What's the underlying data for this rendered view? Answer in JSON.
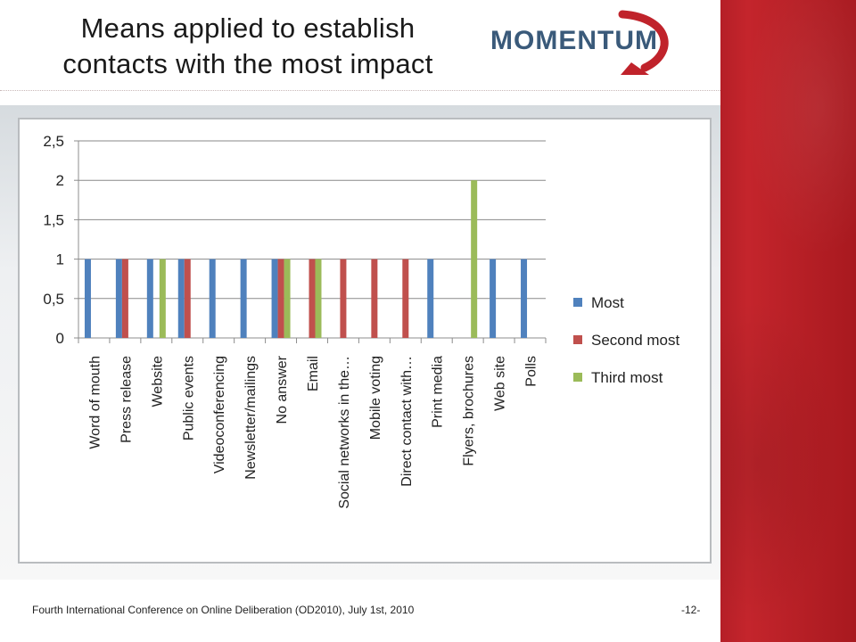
{
  "slide": {
    "title_line1": "Means applied to establish",
    "title_line2": "contacts with the most impact",
    "logo_text": "MOMENTUM",
    "footer": "Fourth International Conference on Online Deliberation (OD2010),  July 1st, 2010",
    "page_number": "-12-"
  },
  "colors": {
    "most": "#4f81bd",
    "second_most": "#c0504d",
    "third_most": "#9bbb59",
    "accent_red": "#b51f27"
  },
  "chart_data": {
    "type": "bar",
    "title": "",
    "xlabel": "",
    "ylabel": "",
    "ylim": [
      0,
      2.5
    ],
    "yticks": [
      "0",
      "0,5",
      "1",
      "1,5",
      "2",
      "2,5"
    ],
    "grid": true,
    "legend_position": "right",
    "categories": [
      "Word of mouth",
      "Press release",
      "Website",
      "Public events",
      "Videoconferencing",
      "Newsletter/mailings",
      "No answer",
      "Email",
      "Social networks in the…",
      "Mobile voting",
      "Direct contact with…",
      "Print media",
      "Flyers, brochures",
      "Web site",
      "Polls"
    ],
    "series": [
      {
        "name": "Most",
        "color": "#4f81bd",
        "values": [
          1,
          1,
          1,
          1,
          1,
          1,
          1,
          0,
          0,
          0,
          0,
          1,
          0,
          1,
          1
        ]
      },
      {
        "name": "Second most",
        "color": "#c0504d",
        "values": [
          0,
          1,
          0,
          1,
          0,
          0,
          1,
          1,
          1,
          1,
          1,
          0,
          0,
          0,
          0
        ]
      },
      {
        "name": "Third most",
        "color": "#9bbb59",
        "values": [
          0,
          0,
          1,
          0,
          0,
          0,
          1,
          1,
          0,
          0,
          0,
          0,
          2,
          0,
          0
        ]
      }
    ]
  }
}
